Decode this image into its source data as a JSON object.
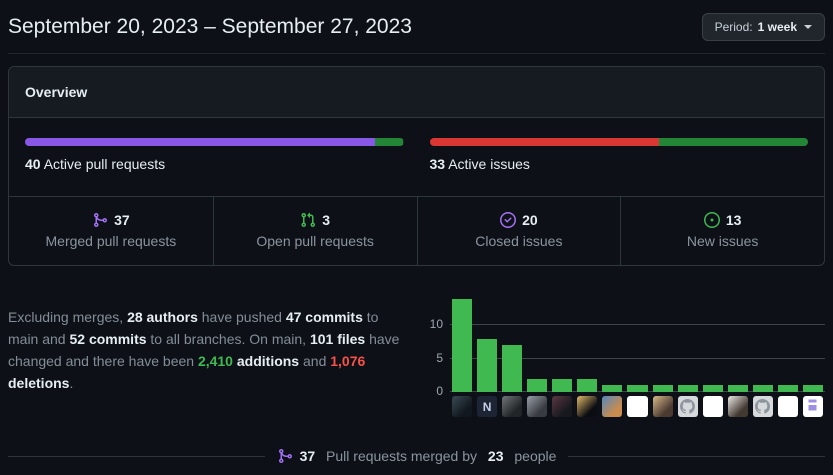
{
  "header": {
    "title": "September 20, 2023 – September 27, 2023",
    "period_label": "Period:",
    "period_value": "1 week"
  },
  "overview": {
    "title": "Overview",
    "pull_requests": {
      "count": "40",
      "label": "Active pull requests",
      "segments": [
        {
          "name": "merged",
          "color": "#8957e5",
          "fraction": 0.925
        },
        {
          "name": "open",
          "color": "#238636",
          "fraction": 0.075
        }
      ]
    },
    "issues": {
      "count": "33",
      "label": "Active issues",
      "segments": [
        {
          "name": "closed",
          "color": "#da3633",
          "fraction": 0.606
        },
        {
          "name": "new",
          "color": "#238636",
          "fraction": 0.394
        }
      ]
    },
    "stats": [
      {
        "icon": "git-merge-icon",
        "icon_color": "#a371f7",
        "value": "37",
        "label": "Merged pull requests"
      },
      {
        "icon": "git-pull-request-icon",
        "icon_color": "#3fb950",
        "value": "3",
        "label": "Open pull requests"
      },
      {
        "icon": "issue-closed-icon",
        "icon_color": "#a371f7",
        "value": "20",
        "label": "Closed issues"
      },
      {
        "icon": "issue-opened-icon",
        "icon_color": "#3fb950",
        "value": "13",
        "label": "New issues"
      }
    ]
  },
  "summary": {
    "segments": [
      {
        "text": "Excluding merges, "
      },
      {
        "text": "28 authors",
        "bold": true
      },
      {
        "text": " have pushed "
      },
      {
        "text": "47 commits",
        "bold": true
      },
      {
        "text": " to main and "
      },
      {
        "text": "52 commits",
        "bold": true
      },
      {
        "text": " to all branches. On main, "
      },
      {
        "text": "101 files",
        "bold": true
      },
      {
        "text": " have changed and there have been "
      },
      {
        "text": "2,410",
        "bold": true,
        "color": "#3fb950"
      },
      {
        "text": " "
      },
      {
        "text": "additions",
        "bold": true
      },
      {
        "text": " and "
      },
      {
        "text": "1,076",
        "bold": true,
        "color": "#f85149"
      },
      {
        "text": " "
      },
      {
        "text": "deletions",
        "bold": true
      },
      {
        "text": "."
      }
    ]
  },
  "chart_data": {
    "type": "bar",
    "title": "",
    "xlabel": "",
    "ylabel": "",
    "values": [
      14,
      8,
      7,
      2,
      2,
      2,
      1,
      1,
      1,
      1,
      1,
      1,
      1,
      1,
      1
    ],
    "yticks": [
      0,
      5,
      10
    ],
    "ylim": [
      0,
      15
    ],
    "grid": true,
    "bar_color": "#3fb950",
    "avatars": [
      {
        "kind": "photo",
        "c1": "#3a4a52",
        "c2": "#11181f"
      },
      {
        "kind": "letter",
        "char": "N",
        "bg": "#1d2535",
        "fg": "#c5d1e6"
      },
      {
        "kind": "photo",
        "c1": "#707579",
        "c2": "#222527"
      },
      {
        "kind": "photo",
        "c1": "#9aa0a8",
        "c2": "#383b41"
      },
      {
        "kind": "photo",
        "c1": "#5c3740",
        "c2": "#17191f"
      },
      {
        "kind": "photo",
        "c1": "#e3b96a",
        "c2": "#0a0d12"
      },
      {
        "kind": "photo",
        "c1": "#5588c0",
        "c2": "#c98c4e"
      },
      {
        "kind": "identicon",
        "bg": "#ffffff",
        "fg": "#df9fdf"
      },
      {
        "kind": "photo",
        "c1": "#d9b98a",
        "c2": "#4b3a30"
      },
      {
        "kind": "octocat",
        "bg": "#d7dadd",
        "fg": "#8e959d"
      },
      {
        "kind": "identicon",
        "bg": "#ffffff",
        "fg": "#64d6a6"
      },
      {
        "kind": "photo",
        "c1": "#eceae6",
        "c2": "#423931"
      },
      {
        "kind": "octocat",
        "bg": "#d7dadd",
        "fg": "#8e959d"
      },
      {
        "kind": "identicon",
        "bg": "#ffffff",
        "fg": "#8ce0bc"
      },
      {
        "kind": "identicon",
        "bg": "#ffffff",
        "fg": "#9d8fe4"
      }
    ]
  },
  "footer": {
    "icon": "git-merge-icon",
    "icon_color": "#a371f7",
    "segments": [
      {
        "text": "37",
        "bold": true
      },
      {
        "text": " Pull requests merged by "
      },
      {
        "text": "23",
        "bold": true
      },
      {
        "text": " people"
      }
    ]
  }
}
